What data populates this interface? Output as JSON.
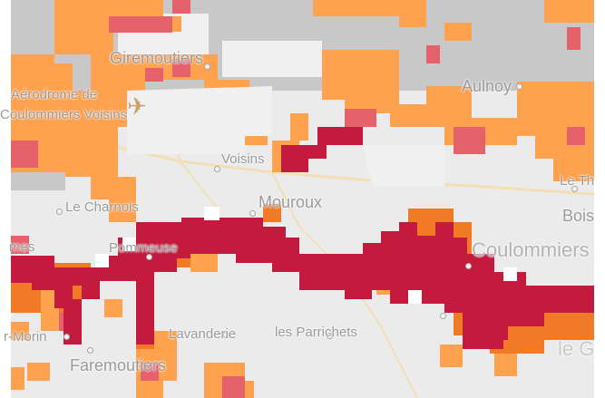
{
  "map": {
    "colors": {
      "background": "#ebebeb",
      "light_grey": "#f0f0f0",
      "grey": "#c8c8c8",
      "light_orange": "#ffa24f",
      "orange": "#f07a25",
      "pink_red": "#e6626b",
      "crimson": "#c31a3d",
      "white_cell": "#ffffff",
      "road": "#f3dfb6"
    },
    "labels": {
      "giremoutiers": "Giremoutiers",
      "aerodrome_line1": "Aérodrome de",
      "aerodrome_line2": "Coulommiers Voisins",
      "aulnoy": "Aulnoy",
      "voisins": "Voisins",
      "le_charnois": "Le Charnois",
      "mouroux": "Mouroux",
      "le_theil": "Le Th",
      "bois": "Bois",
      "pommeuse": "Pommeuse",
      "coulommiers": "Coulommiers",
      "fremes": "mes",
      "la_lavanderie": "Lavanderie",
      "les_parrichets": "les Parrichets",
      "sur_morin": "r-Morin",
      "faremoutiers": "Faremoutiers",
      "le_g": "le G"
    },
    "icons": {
      "airport": "airport-icon"
    }
  }
}
